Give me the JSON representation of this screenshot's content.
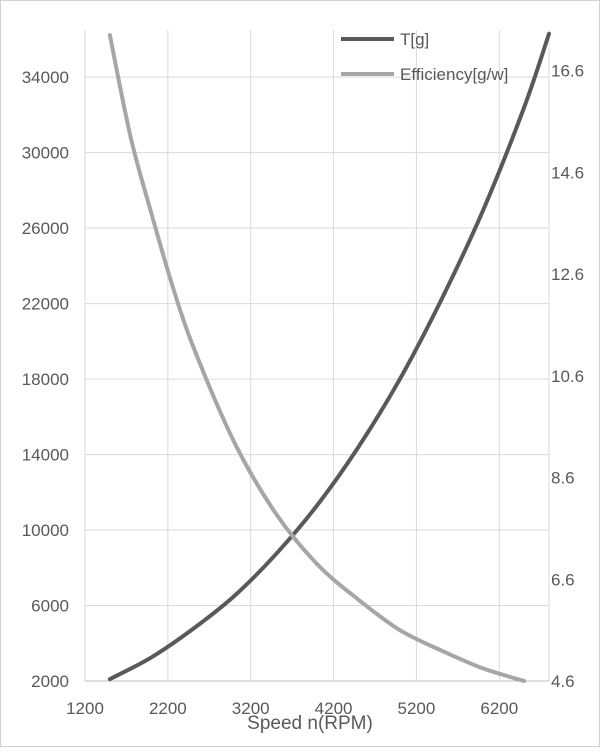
{
  "chart_data": {
    "type": "line",
    "title": "",
    "xlabel": "Speed n(RPM)",
    "ylabel": "",
    "ylabel_right": "",
    "xlim": [
      1200,
      6800
    ],
    "ylim": [
      2000,
      36500
    ],
    "ylim_right": [
      4.6,
      17.4
    ],
    "x_ticks": [
      "1200",
      "2200",
      "3200",
      "4200",
      "5200",
      "6200"
    ],
    "y_ticks_left": [
      "2000",
      "6000",
      "10000",
      "14000",
      "18000",
      "22000",
      "26000",
      "30000",
      "34000"
    ],
    "y_ticks_right": [
      "4.6",
      "6.6",
      "8.6",
      "10.6",
      "12.6",
      "14.6",
      "16.6"
    ],
    "grid": true,
    "legend_position": "top-right",
    "series": [
      {
        "name": "T[g]",
        "axis": "left",
        "color": "#595959",
        "x": [
          1500,
          2000,
          2500,
          3000,
          3500,
          4000,
          4500,
          5000,
          5500,
          6000,
          6500,
          6800
        ],
        "y": [
          2100,
          3250,
          4750,
          6500,
          8700,
          11300,
          14400,
          18000,
          22200,
          26900,
          32400,
          36300
        ]
      },
      {
        "name": "Efficiency[g/w]",
        "axis": "right",
        "color": "#a6a6a6",
        "x": [
          1500,
          1750,
          2000,
          2250,
          2500,
          3000,
          3500,
          4000,
          4500,
          5000,
          5500,
          6000,
          6500
        ],
        "y": [
          17.3,
          15.3,
          13.8,
          12.4,
          11.2,
          9.3,
          7.9,
          6.9,
          6.2,
          5.6,
          5.2,
          4.85,
          4.6
        ]
      }
    ]
  }
}
